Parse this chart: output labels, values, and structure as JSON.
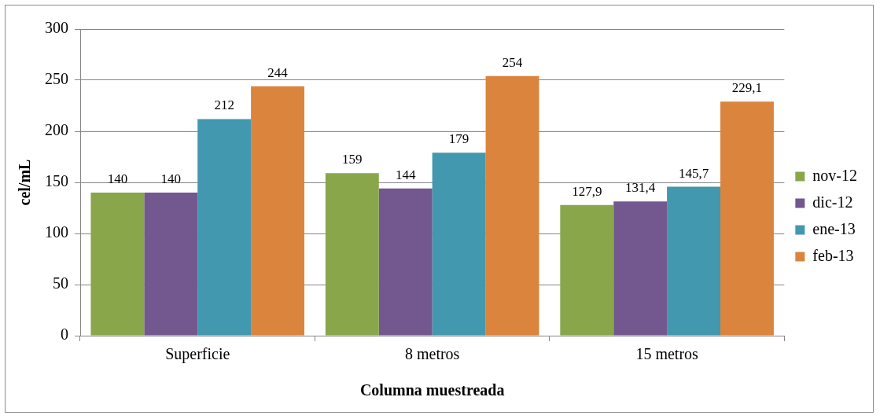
{
  "chart_data": {
    "type": "bar",
    "xlabel": "Columna muestreada",
    "ylabel": "cel/mL",
    "categories": [
      "Superficie",
      "8 metros",
      "15 metros"
    ],
    "series": [
      {
        "name": "nov-12",
        "color": "#8aa64b",
        "values": [
          140,
          159,
          127.9
        ],
        "value_labels": [
          "140",
          "159",
          "127,9"
        ]
      },
      {
        "name": "dic-12",
        "color": "#72588e",
        "values": [
          140,
          144,
          131.4
        ],
        "value_labels": [
          "140",
          "144",
          "131,4"
        ]
      },
      {
        "name": "ene-13",
        "color": "#4198af",
        "values": [
          212,
          179,
          145.7
        ],
        "value_labels": [
          "212",
          "179",
          "145,7"
        ]
      },
      {
        "name": "feb-13",
        "color": "#db843d",
        "values": [
          244,
          254,
          229.1
        ],
        "value_labels": [
          "244",
          "254",
          "229,1"
        ]
      }
    ],
    "ylim": [
      0,
      300
    ],
    "yticks": [
      0,
      50,
      100,
      150,
      200,
      250,
      300
    ],
    "grid": "y",
    "legend": "right"
  }
}
